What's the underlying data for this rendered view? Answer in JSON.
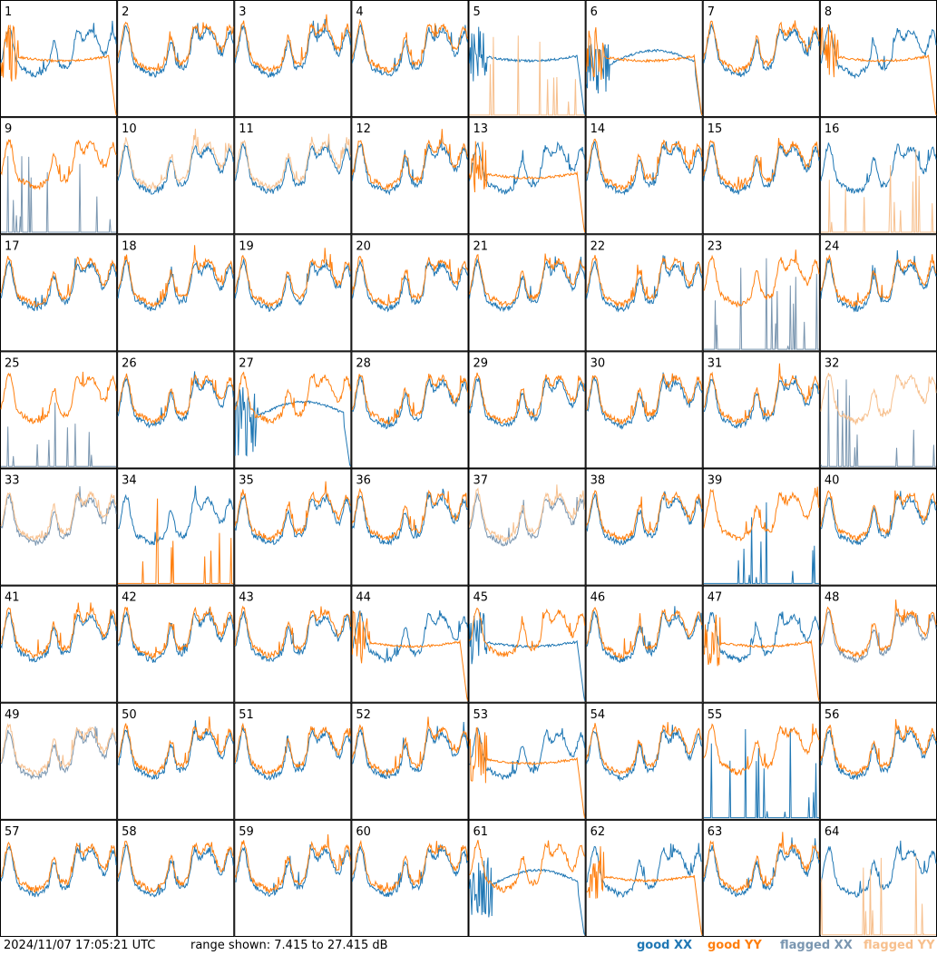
{
  "footer": {
    "timestamp": "2024/11/07 17:05:21 UTC",
    "range_text": "range shown: 7.415 to 27.415 dB"
  },
  "legend": [
    {
      "label": "good XX",
      "color": "#1f77b4"
    },
    {
      "label": "good YY",
      "color": "#ff7f0e"
    },
    {
      "label": "flagged XX",
      "color": "#7a96b0"
    },
    {
      "label": "flagged YY",
      "color": "#f7c08e"
    }
  ],
  "chart_data": {
    "type": "line",
    "layout": "8x8 small multiples",
    "y_range_db": [
      7.415,
      27.415
    ],
    "panels": [
      {
        "id": "1",
        "xx": "normal",
        "yy": "deviant"
      },
      {
        "id": "2",
        "xx": "normal",
        "yy": "normal"
      },
      {
        "id": "3",
        "xx": "normal",
        "yy": "normal"
      },
      {
        "id": "4",
        "xx": "normal",
        "yy": "normal"
      },
      {
        "id": "5",
        "xx": "deviant",
        "yy": "spikes",
        "yy_status": "flagged"
      },
      {
        "id": "6",
        "xx": "dip",
        "yy": "deviant"
      },
      {
        "id": "7",
        "xx": "normal",
        "yy": "normal"
      },
      {
        "id": "8",
        "xx": "normal",
        "yy": "deviant"
      },
      {
        "id": "9",
        "xx": "spikes",
        "yy": "normal",
        "xx_status": "flagged"
      },
      {
        "id": "10",
        "xx": "normal",
        "yy": "normal",
        "yy_status": "flagged"
      },
      {
        "id": "11",
        "xx": "normal",
        "yy": "normal",
        "yy_status": "flagged"
      },
      {
        "id": "12",
        "xx": "normal",
        "yy": "normal"
      },
      {
        "id": "13",
        "xx": "normal",
        "yy": "deviant"
      },
      {
        "id": "14",
        "xx": "normal",
        "yy": "normal"
      },
      {
        "id": "15",
        "xx": "normal",
        "yy": "normal"
      },
      {
        "id": "16",
        "xx": "normal",
        "yy": "spikes",
        "yy_status": "flagged"
      },
      {
        "id": "17",
        "xx": "normal",
        "yy": "normal"
      },
      {
        "id": "18",
        "xx": "normal",
        "yy": "normal"
      },
      {
        "id": "19",
        "xx": "normal",
        "yy": "normal"
      },
      {
        "id": "20",
        "xx": "normal",
        "yy": "normal"
      },
      {
        "id": "21",
        "xx": "normal",
        "yy": "normal"
      },
      {
        "id": "22",
        "xx": "normal",
        "yy": "normal"
      },
      {
        "id": "23",
        "xx": "spikes",
        "yy": "normal",
        "xx_status": "flagged"
      },
      {
        "id": "24",
        "xx": "normal",
        "yy": "normal"
      },
      {
        "id": "25",
        "xx": "spikes",
        "yy": "normal",
        "xx_status": "flagged"
      },
      {
        "id": "26",
        "xx": "normal",
        "yy": "normal"
      },
      {
        "id": "27",
        "xx": "dip",
        "yy": "normal"
      },
      {
        "id": "28",
        "xx": "normal",
        "yy": "normal"
      },
      {
        "id": "29",
        "xx": "normal",
        "yy": "normal"
      },
      {
        "id": "30",
        "xx": "normal",
        "yy": "normal"
      },
      {
        "id": "31",
        "xx": "normal",
        "yy": "normal"
      },
      {
        "id": "32",
        "xx": "spikes",
        "yy": "normal",
        "xx_status": "flagged",
        "yy_status": "flagged"
      },
      {
        "id": "33",
        "xx": "normal",
        "yy": "normal",
        "xx_status": "flagged",
        "yy_status": "flagged"
      },
      {
        "id": "34",
        "xx": "normal",
        "yy": "spikes"
      },
      {
        "id": "35",
        "xx": "normal",
        "yy": "normal"
      },
      {
        "id": "36",
        "xx": "normal",
        "yy": "normal"
      },
      {
        "id": "37",
        "xx": "normal",
        "yy": "normal",
        "xx_status": "flagged",
        "yy_status": "flagged"
      },
      {
        "id": "38",
        "xx": "normal",
        "yy": "normal"
      },
      {
        "id": "39",
        "xx": "spikes",
        "yy": "normal"
      },
      {
        "id": "40",
        "xx": "normal",
        "yy": "normal"
      },
      {
        "id": "41",
        "xx": "normal",
        "yy": "normal"
      },
      {
        "id": "42",
        "xx": "normal",
        "yy": "normal"
      },
      {
        "id": "43",
        "xx": "normal",
        "yy": "normal"
      },
      {
        "id": "44",
        "xx": "normal",
        "yy": "deviant"
      },
      {
        "id": "45",
        "xx": "deviant",
        "yy": "normal"
      },
      {
        "id": "46",
        "xx": "normal",
        "yy": "normal"
      },
      {
        "id": "47",
        "xx": "normal",
        "yy": "deviant"
      },
      {
        "id": "48",
        "xx": "normal",
        "yy": "normal",
        "xx_status": "flagged"
      },
      {
        "id": "49",
        "xx": "normal",
        "yy": "normal",
        "xx_status": "flagged",
        "yy_status": "flagged"
      },
      {
        "id": "50",
        "xx": "normal",
        "yy": "normal"
      },
      {
        "id": "51",
        "xx": "normal",
        "yy": "normal"
      },
      {
        "id": "52",
        "xx": "normal",
        "yy": "normal"
      },
      {
        "id": "53",
        "xx": "normal",
        "yy": "deviant"
      },
      {
        "id": "54",
        "xx": "normal",
        "yy": "normal"
      },
      {
        "id": "55",
        "xx": "spikes",
        "yy": "normal"
      },
      {
        "id": "56",
        "xx": "normal",
        "yy": "normal"
      },
      {
        "id": "57",
        "xx": "normal",
        "yy": "normal"
      },
      {
        "id": "58",
        "xx": "normal",
        "yy": "normal"
      },
      {
        "id": "59",
        "xx": "normal",
        "yy": "normal"
      },
      {
        "id": "60",
        "xx": "normal",
        "yy": "normal"
      },
      {
        "id": "61",
        "xx": "dip",
        "yy": "normal"
      },
      {
        "id": "62",
        "xx": "normal",
        "yy": "deviant"
      },
      {
        "id": "63",
        "xx": "normal",
        "yy": "normal"
      },
      {
        "id": "64",
        "xx": "normal",
        "yy": "spikes",
        "yy_status": "flagged"
      }
    ]
  }
}
